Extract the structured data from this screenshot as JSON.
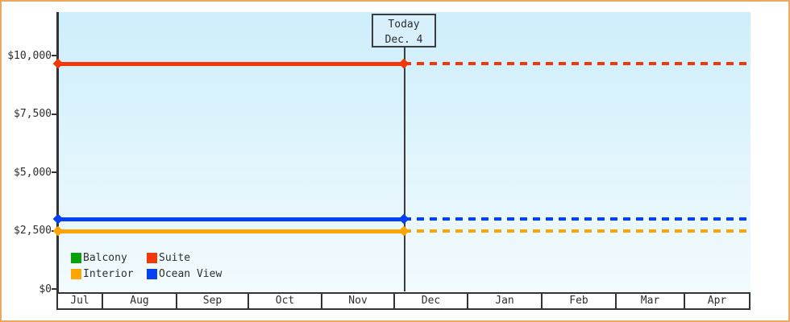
{
  "frame": {
    "border_color": "#eba960",
    "background_color": "#ffffff",
    "plot_gradient_top": "#cdeefb",
    "plot_gradient_bottom": "#f3fbfe"
  },
  "today_marker": {
    "title": "Today",
    "date": "Dec. 4"
  },
  "axis": {
    "y_tick_labels": [
      "$10,000",
      "$7,500",
      "$5,000",
      "$2,500",
      "$0"
    ],
    "y_tick_values": [
      10000,
      7500,
      5000,
      2500,
      0
    ],
    "x_month_labels": [
      "Jul",
      "Aug",
      "Sep",
      "Oct",
      "Nov",
      "Dec",
      "Jan",
      "Feb",
      "Mar",
      "Apr"
    ]
  },
  "legend": [
    {
      "label": "Balcony",
      "color": "#0aa00a"
    },
    {
      "label": "Suite",
      "color": "#f23808"
    },
    {
      "label": "Interior",
      "color": "#ffa502"
    },
    {
      "label": "Ocean View",
      "color": "#0540f2"
    }
  ],
  "chart_data": {
    "type": "line",
    "title": "",
    "xlabel": "",
    "ylabel": "",
    "x_categories": [
      "Jul",
      "Aug",
      "Sep",
      "Oct",
      "Nov",
      "Dec",
      "Jan",
      "Feb",
      "Mar",
      "Apr"
    ],
    "y_ticks": [
      0,
      2500,
      5000,
      7500,
      10000
    ],
    "ylim": [
      0,
      11860
    ],
    "grid": false,
    "legend_position": "bottom-left inside plot",
    "today": {
      "month": "Dec",
      "day": 4,
      "annotation": "Today Dec. 4"
    },
    "values_are_approximate": true,
    "series": [
      {
        "name": "Balcony",
        "color": "#0aa00a",
        "value": null,
        "visible": false,
        "note": "legend entry only; no line visible in plot"
      },
      {
        "name": "Suite",
        "color": "#f23808",
        "value": 9650,
        "style": "flat; solid before today, dotted after"
      },
      {
        "name": "Interior",
        "color": "#ffa502",
        "value": 2480,
        "style": "flat; solid before today, dotted after"
      },
      {
        "name": "Ocean View",
        "color": "#0540f2",
        "value": 3000,
        "style": "flat; solid before today, dotted after"
      }
    ]
  }
}
